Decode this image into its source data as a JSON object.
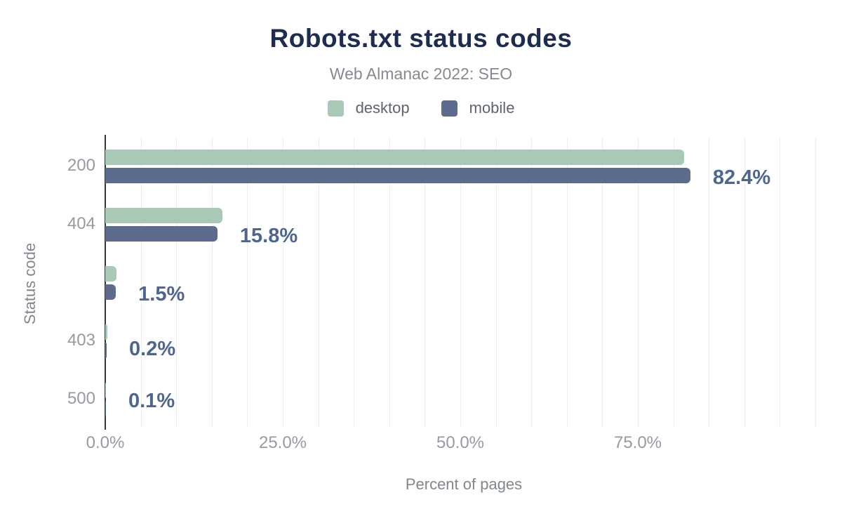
{
  "chart_data": {
    "type": "bar",
    "orientation": "horizontal",
    "title": "Robots.txt status codes",
    "subtitle": "Web Almanac 2022: SEO",
    "xlabel": "Percent of pages",
    "ylabel": "Status code",
    "categories": [
      "200",
      "404",
      "",
      "403",
      "500"
    ],
    "series": [
      {
        "name": "desktop",
        "color": "#a9c8b5",
        "values": [
          81.5,
          16.5,
          1.6,
          0.3,
          0.1
        ]
      },
      {
        "name": "mobile",
        "color": "#5d6c8c",
        "values": [
          82.4,
          15.8,
          1.5,
          0.2,
          0.1
        ]
      }
    ],
    "value_labels": [
      "82.4%",
      "15.8%",
      "1.5%",
      "0.2%",
      "0.1%"
    ],
    "value_label_series": "mobile",
    "x_ticks": [
      {
        "pos": 0,
        "label": "0.0%"
      },
      {
        "pos": 25,
        "label": "25.0%"
      },
      {
        "pos": 50,
        "label": "50.0%"
      },
      {
        "pos": 75,
        "label": "75.0%"
      }
    ],
    "xlim": [
      0,
      101
    ],
    "grid": true,
    "grid_step": 5,
    "legend_position": "top",
    "colors": {
      "title": "#1e2c50",
      "subtitle": "#86898f",
      "value_label": "#4e668f",
      "tick_label": "#969aa1",
      "axis_title": "#82868d",
      "axis_line": "#363636",
      "gridline": "#ededf1",
      "background": "#ffffff"
    }
  }
}
